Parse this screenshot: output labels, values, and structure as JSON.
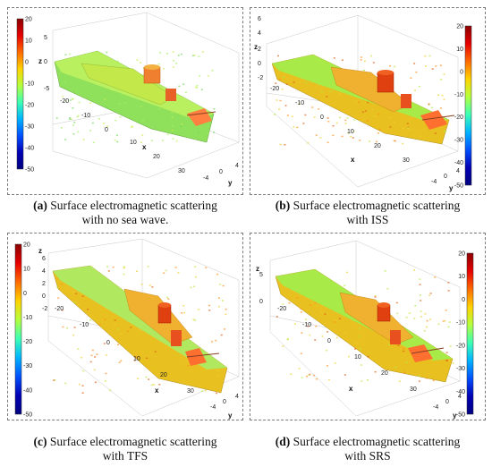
{
  "colormap": {
    "stops": [
      "#8b0000",
      "#e60000",
      "#ff6a00",
      "#ffd200",
      "#b4ff3c",
      "#3cffb4",
      "#00b4ff",
      "#0050ff",
      "#0000b4",
      "#00007f"
    ]
  },
  "panels": [
    {
      "id": "a",
      "caption_letter": "(a)",
      "caption_line1": "Surface electromagnetic scattering",
      "caption_line2": "with no sea wave.",
      "colorbar_ticks": [
        "20",
        "10",
        "0",
        "-10",
        "-20",
        "-30",
        "-40",
        "-50"
      ],
      "z_ticks": [
        "5",
        "0",
        "-5"
      ],
      "x_ticks": [
        "-20",
        "-10",
        "0",
        "10",
        "20",
        "30"
      ],
      "y_ticks": [
        "-4",
        "0",
        "4"
      ],
      "x_label": "x",
      "y_label": "y",
      "z_label": "z",
      "hull_color": "#8fe05a",
      "deck_color": "#a8ea48"
    },
    {
      "id": "b",
      "caption_letter": "(b)",
      "caption_line1": "Surface electromagnetic scattering",
      "caption_line2": "with ISS",
      "colorbar_ticks": [
        "20",
        "10",
        "0",
        "-10",
        "-20",
        "-30",
        "-40",
        "-50"
      ],
      "z_ticks": [
        "6",
        "4",
        "2",
        "0",
        "-2"
      ],
      "x_ticks": [
        "-20",
        "-10",
        "0",
        "10",
        "20",
        "30"
      ],
      "y_ticks": [
        "-4",
        "0",
        "4"
      ],
      "x_label": "x",
      "y_label": "y",
      "z_label": "z",
      "hull_color": "#e8c020",
      "deck_color": "#a8ea48"
    },
    {
      "id": "c",
      "caption_letter": "(c)",
      "caption_line1": "Surface electromagnetic scattering",
      "caption_line2": "with TFS",
      "colorbar_ticks": [
        "20",
        "10",
        "0",
        "-10",
        "-20",
        "-30",
        "-40",
        "-50"
      ],
      "z_ticks": [
        "6",
        "4",
        "2",
        "0",
        "-2"
      ],
      "x_ticks": [
        "-20",
        "-10",
        "0",
        "10",
        "20",
        "30"
      ],
      "y_ticks": [
        "-4",
        "0",
        "4"
      ],
      "x_label": "x",
      "y_label": "y",
      "z_label": "z",
      "hull_color": "#e8c020",
      "deck_color": "#a8ea48"
    },
    {
      "id": "d",
      "caption_letter": "(d)",
      "caption_line1": "Surface electromagnetic scattering",
      "caption_line2": "with SRS",
      "colorbar_ticks": [
        "20",
        "10",
        "0",
        "-10",
        "-20",
        "-30",
        "-40",
        "-50"
      ],
      "z_ticks": [
        "5",
        "0"
      ],
      "x_ticks": [
        "-20",
        "-10",
        "0",
        "10",
        "20",
        "30"
      ],
      "y_ticks": [
        "-4",
        "0",
        "4"
      ],
      "x_label": "x",
      "y_label": "y",
      "z_label": "z",
      "hull_color": "#e8c020",
      "deck_color": "#a8ea48"
    }
  ]
}
